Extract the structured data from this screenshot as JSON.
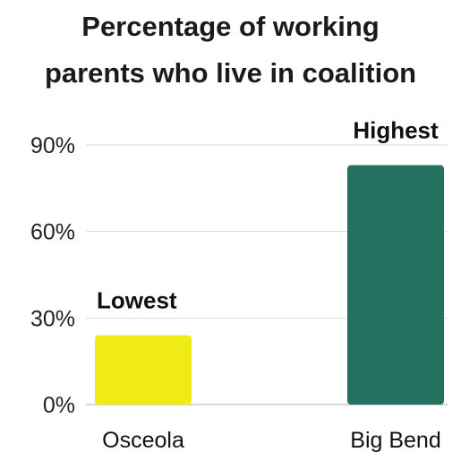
{
  "chart_data": {
    "type": "bar",
    "title_lines": [
      "Percentage of working",
      "parents who live in coalition"
    ],
    "xlabel": "",
    "ylabel": "",
    "categories": [
      "Osceola",
      "Big Bend"
    ],
    "values": [
      24,
      83
    ],
    "annotations": [
      "Lowest",
      "Highest"
    ],
    "colors": [
      "#f0ea16",
      "#24715f"
    ],
    "ylim": [
      0,
      90
    ],
    "yticks": [
      0,
      30,
      60,
      90
    ],
    "ytick_labels": [
      "0%",
      "30%",
      "60%",
      "90%"
    ],
    "grid": true,
    "legend": "none"
  }
}
